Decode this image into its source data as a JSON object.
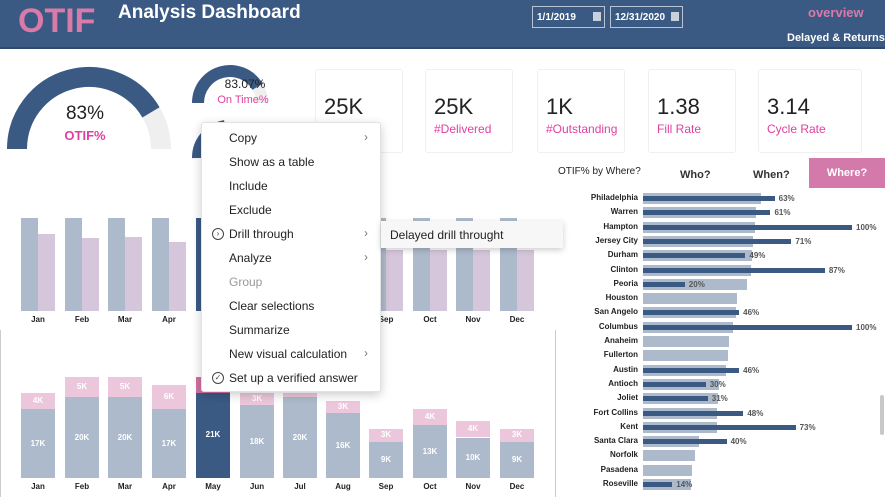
{
  "header": {
    "logo": "OTIF",
    "title": "Analysis Dashboard",
    "start_date": "1/1/2019",
    "end_date": "12/31/2020",
    "nav_overview": "overview",
    "nav_delayed": "Delayed & Returns"
  },
  "gauges": {
    "otif": {
      "value": "83%",
      "label": "OTIF%",
      "fraction": 0.83
    },
    "ontime": {
      "value": "83.07%",
      "label": "On Time%",
      "fraction": 0.8307
    }
  },
  "kpis": [
    {
      "value": "25K",
      "label": ""
    },
    {
      "value": "25K",
      "label": "#Delivered"
    },
    {
      "value": "1K",
      "label": "#Outstanding"
    },
    {
      "value": "1.38",
      "label": "Fill Rate"
    },
    {
      "value": "3.14",
      "label": "Cycle Rate"
    }
  ],
  "tabs": {
    "title": "OTIF% by Where?",
    "who": "Who?",
    "when": "When?",
    "where": "Where?"
  },
  "colors": {
    "navy": "#3a5a84",
    "light": "#adbacb",
    "pink": "#ecc7db",
    "lilac": "#d6c6dc",
    "accent": "#e040a0"
  },
  "chart_data": [
    {
      "type": "bar",
      "categories": [
        "Jan",
        "Feb",
        "Mar",
        "Apr",
        "May",
        "Jun",
        "Jul",
        "Aug",
        "Sep",
        "Oct",
        "Nov",
        "Dec"
      ],
      "series": [
        {
          "values": [
            100,
            100,
            100,
            100,
            100,
            100,
            100,
            100,
            100,
            100,
            100,
            100
          ]
        },
        {
          "values": [
            83,
            79,
            80,
            74,
            null,
            null,
            null,
            null,
            66,
            66,
            66,
            66
          ]
        }
      ],
      "selected": "May"
    },
    {
      "type": "bar",
      "stacked": true,
      "categories": [
        "Jan",
        "Feb",
        "Mar",
        "Apr",
        "May",
        "Jun",
        "Jul",
        "Aug",
        "Sep",
        "Oct",
        "Nov",
        "Dec"
      ],
      "series": [
        {
          "values": [
            17,
            20,
            20,
            17,
            21,
            18,
            20,
            16,
            9,
            13,
            10,
            9
          ],
          "labels": [
            "17K",
            "20K",
            "20K",
            "17K",
            "21K",
            "18K",
            "20K",
            "16K",
            "9K",
            "13K",
            "10K",
            "9K"
          ]
        },
        {
          "values": [
            4,
            5,
            5,
            6,
            4,
            3,
            1,
            3,
            3,
            4,
            4,
            3
          ],
          "labels": [
            "4K",
            "5K",
            "5K",
            "6K",
            "",
            "3K",
            "",
            "3K",
            "3K",
            "4K",
            "4K",
            "3K"
          ]
        }
      ],
      "selected": "May"
    },
    {
      "type": "bar",
      "orientation": "horizontal",
      "categories": [
        "Philadelphia",
        "Warren",
        "Hampton",
        "Jersey City",
        "Durham",
        "Clinton",
        "Peoria",
        "Houston",
        "San Angelo",
        "Columbus",
        "Anaheim",
        "Fullerton",
        "Austin",
        "Antioch",
        "Joliet",
        "Fort Collins",
        "Kent",
        "Santa Clara",
        "Norfolk",
        "Pasadena",
        "Roseville"
      ],
      "series": [
        {
          "values": [
            118,
            113,
            112,
            110,
            109,
            108,
            104,
            94,
            93,
            90,
            86,
            85,
            83,
            76,
            75,
            74,
            74,
            56,
            52,
            49,
            48
          ]
        },
        {
          "values": [
            63,
            61,
            100,
            71,
            49,
            87,
            20,
            null,
            46,
            100,
            null,
            null,
            46,
            30,
            31,
            48,
            73,
            40,
            null,
            null,
            14
          ],
          "labels": [
            "63%",
            "61%",
            "100%",
            "71%",
            "49%",
            "87%",
            "20%",
            "",
            "46%",
            "100%",
            "",
            "",
            "46%",
            "30%",
            "31%",
            "48%",
            "73%",
            "40%",
            "",
            "",
            "14%"
          ]
        }
      ]
    }
  ],
  "context_menu": {
    "items": [
      "Copy",
      "Show as a table",
      "Include",
      "Exclude",
      "Drill through",
      "Analyze",
      "Group",
      "Clear selections",
      "Summarize",
      "New visual calculation",
      "Set up a verified answer"
    ],
    "submenu": "Delayed drill throught"
  }
}
